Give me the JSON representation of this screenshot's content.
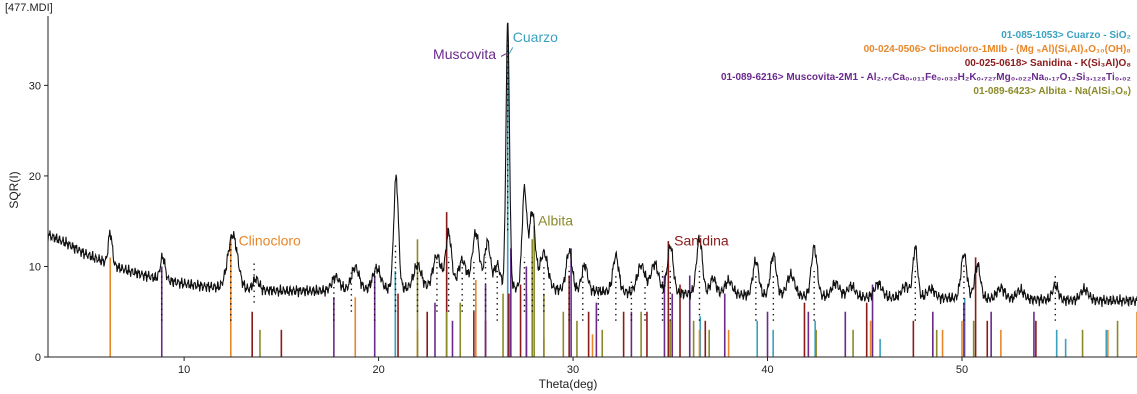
{
  "file_tag": "[477.MDI]",
  "chart_data": {
    "type": "line",
    "xlabel": "Theta(deg)",
    "ylabel": "SQR(I)",
    "xlim": [
      3,
      59
    ],
    "ylim": [
      0,
      37
    ],
    "x_ticks": [
      10,
      20,
      30,
      40,
      50
    ],
    "y_ticks": [
      0,
      10,
      20,
      30
    ],
    "grid": false,
    "legend_position": "top-right",
    "phases": [
      {
        "key": "cuarzo",
        "color": "#3aa1c0",
        "legend": "01-085-1053> Cuarzo - SiO₂",
        "label": "Cuarzo",
        "label_at": [
          26.9,
          34.8
        ]
      },
      {
        "key": "clinocloro",
        "color": "#e8872a",
        "legend": "00-024-0506> Clinocloro-1MIIb - (Mg ₅Al)(Si,Al)₄O₁₀(OH)₈",
        "label": "Clinocloro",
        "label_at": [
          12.8,
          12.3
        ]
      },
      {
        "key": "sanidina",
        "color": "#8b1a1a",
        "legend": "00-025-0618> Sanidina - K(Si₃Al)O₈",
        "label": "Sanidina",
        "label_at": [
          35.2,
          12.3
        ]
      },
      {
        "key": "muscovita",
        "color": "#6a2a8c",
        "legend": "01-089-6216> Muscovita-2M1 - Al₂.₇₆Ca₀.₀₁₁Fe₀.₀₃₂H₂K₀.₇₂₇Mg₀.₀₂₂Na₀.₁₇O₁₂Si₃.₁₂₈Ti₀.₀₂",
        "label": "Muscovita",
        "label_at": [
          22.8,
          32.9
        ]
      },
      {
        "key": "albita",
        "color": "#8a8a2a",
        "legend": "01-089-6423> Albita - Na(AlSi₃O₈)",
        "label": "Albita",
        "label_at": [
          28.2,
          14.5
        ]
      }
    ],
    "pattern": {
      "background": [
        [
          3,
          13.5
        ],
        [
          4,
          12.5
        ],
        [
          5,
          11.3
        ],
        [
          6,
          10.4
        ],
        [
          7,
          9.6
        ],
        [
          8,
          9.0
        ],
        [
          9,
          8.5
        ],
        [
          10,
          8.1
        ],
        [
          11,
          7.8
        ],
        [
          13,
          7.5
        ],
        [
          15,
          7.3
        ],
        [
          17,
          7.3
        ],
        [
          20,
          7.5
        ],
        [
          23,
          7.7
        ],
        [
          26,
          7.7
        ],
        [
          29,
          7.5
        ],
        [
          32,
          7.2
        ],
        [
          36,
          7.0
        ],
        [
          40,
          6.8
        ],
        [
          45,
          6.6
        ],
        [
          50,
          6.5
        ],
        [
          55,
          6.3
        ],
        [
          59,
          6.2
        ]
      ],
      "peaks": [
        [
          6.2,
          3.5,
          0.1
        ],
        [
          8.9,
          2.5,
          0.12
        ],
        [
          12.5,
          5.9,
          0.25
        ],
        [
          13.7,
          1.2,
          0.15
        ],
        [
          17.8,
          1.5,
          0.2
        ],
        [
          18.8,
          2.5,
          0.2
        ],
        [
          19.9,
          2.3,
          0.2
        ],
        [
          20.9,
          12.3,
          0.12
        ],
        [
          22.0,
          2.5,
          0.2
        ],
        [
          23.0,
          3.5,
          0.2
        ],
        [
          23.6,
          6.0,
          0.15
        ],
        [
          24.3,
          3.0,
          0.2
        ],
        [
          25.0,
          6.0,
          0.18
        ],
        [
          25.6,
          5.0,
          0.15
        ],
        [
          26.1,
          2.5,
          0.15
        ],
        [
          26.64,
          29.2,
          0.09
        ],
        [
          27.5,
          10.8,
          0.12
        ],
        [
          27.9,
          8.5,
          0.15
        ],
        [
          28.5,
          4.0,
          0.2
        ],
        [
          29.8,
          4.3,
          0.15
        ],
        [
          30.6,
          2.8,
          0.15
        ],
        [
          32.2,
          4.0,
          0.15
        ],
        [
          33.5,
          3.0,
          0.2
        ],
        [
          34.2,
          3.2,
          0.2
        ],
        [
          35.0,
          5.3,
          0.15
        ],
        [
          36.5,
          6.1,
          0.15
        ],
        [
          37.2,
          1.8,
          0.15
        ],
        [
          38.0,
          1.5,
          0.2
        ],
        [
          39.4,
          3.8,
          0.15
        ],
        [
          40.3,
          4.5,
          0.15
        ],
        [
          41.2,
          2.3,
          0.2
        ],
        [
          42.4,
          5.4,
          0.15
        ],
        [
          43.5,
          1.5,
          0.2
        ],
        [
          44.3,
          1.2,
          0.2
        ],
        [
          45.7,
          1.5,
          0.2
        ],
        [
          47.1,
          1.3,
          0.2
        ],
        [
          47.6,
          5.5,
          0.12
        ],
        [
          48.4,
          1.0,
          0.2
        ],
        [
          50.1,
          4.9,
          0.15
        ],
        [
          50.8,
          3.7,
          0.15
        ],
        [
          52.0,
          1.2,
          0.2
        ],
        [
          53.0,
          1.0,
          0.2
        ],
        [
          54.8,
          1.6,
          0.15
        ],
        [
          56.3,
          1.2,
          0.2
        ]
      ]
    },
    "reference_lines": [
      {
        "phase": "cuarzo",
        "lines": [
          [
            20.86,
            9.5
          ],
          [
            26.64,
            36
          ],
          [
            36.54,
            4.5
          ],
          [
            39.47,
            4.0
          ],
          [
            40.29,
            3.0
          ],
          [
            42.45,
            4.0
          ],
          [
            45.79,
            2.0
          ],
          [
            50.14,
            6.5
          ],
          [
            54.87,
            3.0
          ],
          [
            55.33,
            2.0
          ],
          [
            57.42,
            3.0
          ]
        ]
      },
      {
        "phase": "clinocloro",
        "lines": [
          [
            6.2,
            11
          ],
          [
            12.4,
            13.1
          ],
          [
            18.8,
            6.6
          ],
          [
            22.0,
            3
          ],
          [
            25.0,
            8.5
          ],
          [
            28.5,
            2
          ],
          [
            31.0,
            2.5
          ],
          [
            34.9,
            5
          ],
          [
            36.5,
            3
          ],
          [
            38.0,
            3
          ],
          [
            45.3,
            4
          ],
          [
            49.0,
            3
          ],
          [
            50.0,
            4
          ],
          [
            52.0,
            3
          ],
          [
            57.5,
            3
          ],
          [
            59.0,
            5
          ]
        ]
      },
      {
        "phase": "sanidina",
        "lines": [
          [
            13.5,
            5
          ],
          [
            15.0,
            3
          ],
          [
            21.0,
            7
          ],
          [
            22.5,
            5
          ],
          [
            23.5,
            16
          ],
          [
            24.9,
            5
          ],
          [
            25.5,
            4
          ],
          [
            26.7,
            7
          ],
          [
            27.3,
            8
          ],
          [
            27.6,
            7
          ],
          [
            29.8,
            9
          ],
          [
            30.8,
            5
          ],
          [
            32.6,
            5
          ],
          [
            33.8,
            5
          ],
          [
            34.9,
            12.8
          ],
          [
            35.5,
            8
          ],
          [
            36.8,
            4
          ],
          [
            41.9,
            6
          ],
          [
            45.1,
            6
          ],
          [
            47.5,
            4
          ],
          [
            50.7,
            11
          ],
          [
            51.3,
            4
          ],
          [
            53.8,
            4
          ]
        ]
      },
      {
        "phase": "muscovita",
        "lines": [
          [
            8.85,
            10
          ],
          [
            17.7,
            6.6
          ],
          [
            19.8,
            9
          ],
          [
            22.9,
            6
          ],
          [
            23.8,
            4
          ],
          [
            25.5,
            8
          ],
          [
            26.8,
            12
          ],
          [
            27.6,
            10
          ],
          [
            29.9,
            12
          ],
          [
            31.2,
            6
          ],
          [
            33.0,
            5
          ],
          [
            34.7,
            9
          ],
          [
            35.1,
            7
          ],
          [
            36.0,
            9
          ],
          [
            37.8,
            7
          ],
          [
            40.0,
            5
          ],
          [
            42.1,
            5
          ],
          [
            44.0,
            5
          ],
          [
            45.4,
            8
          ],
          [
            48.5,
            5
          ],
          [
            50.1,
            6
          ],
          [
            51.5,
            5
          ],
          [
            53.7,
            5
          ]
        ]
      },
      {
        "phase": "albita",
        "lines": [
          [
            13.9,
            3
          ],
          [
            22.0,
            13
          ],
          [
            23.5,
            5
          ],
          [
            24.2,
            6
          ],
          [
            26.4,
            7
          ],
          [
            27.9,
            13
          ],
          [
            28.0,
            14.5
          ],
          [
            28.5,
            7
          ],
          [
            29.5,
            5
          ],
          [
            30.2,
            4
          ],
          [
            31.5,
            3
          ],
          [
            33.5,
            5
          ],
          [
            35.0,
            4
          ],
          [
            36.2,
            4
          ],
          [
            37.0,
            3
          ],
          [
            42.5,
            3
          ],
          [
            44.4,
            3
          ],
          [
            48.7,
            3
          ],
          [
            50.6,
            4
          ],
          [
            56.2,
            3
          ],
          [
            58.0,
            4
          ]
        ]
      }
    ],
    "stick_markers": [
      [
        8.85,
        4,
        9.5
      ],
      [
        12.4,
        4,
        12.5
      ],
      [
        13.6,
        6,
        10.5
      ],
      [
        17.7,
        4,
        8
      ],
      [
        18.6,
        5,
        9.5
      ],
      [
        19.8,
        4,
        9.5
      ],
      [
        20.87,
        5,
        12.5
      ],
      [
        22.0,
        5,
        10.5
      ],
      [
        23.0,
        5,
        10.5
      ],
      [
        23.6,
        5,
        11
      ],
      [
        24.3,
        5,
        11
      ],
      [
        24.9,
        5,
        10.5
      ],
      [
        25.5,
        5,
        11
      ],
      [
        26.1,
        4,
        10
      ],
      [
        26.64,
        14,
        36
      ],
      [
        27.5,
        5,
        11
      ],
      [
        27.9,
        5,
        11
      ],
      [
        28.5,
        5,
        10
      ],
      [
        29.8,
        4,
        10
      ],
      [
        30.5,
        4,
        9
      ],
      [
        31.3,
        4,
        8
      ],
      [
        32.2,
        4,
        9
      ],
      [
        33.0,
        4,
        8.5
      ],
      [
        33.7,
        4,
        8
      ],
      [
        34.6,
        4,
        10
      ],
      [
        35.0,
        4,
        10
      ],
      [
        36.5,
        4,
        10
      ],
      [
        39.4,
        4,
        9
      ],
      [
        40.3,
        4,
        9
      ],
      [
        42.4,
        4,
        9.5
      ],
      [
        47.6,
        4,
        10
      ],
      [
        50.1,
        4,
        10.5
      ],
      [
        54.8,
        4,
        9
      ]
    ]
  }
}
